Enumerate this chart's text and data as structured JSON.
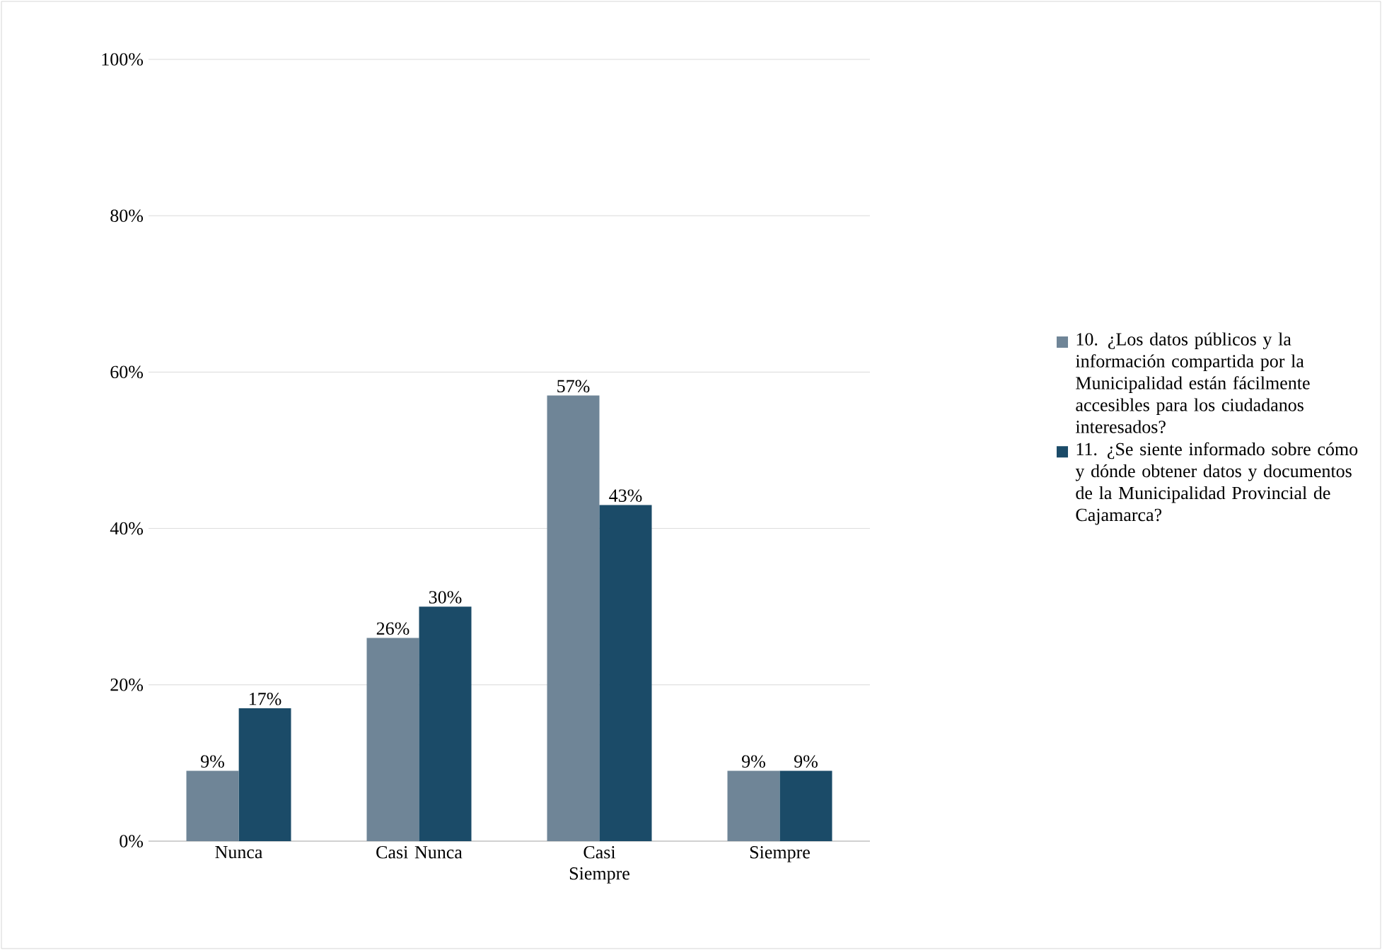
{
  "chart_data": {
    "type": "bar",
    "categories": [
      "Nunca",
      "Casi Nunca",
      "Casi Siempre",
      "Siempre"
    ],
    "series": [
      {
        "name": "10. ¿Los datos públicos y la información compartida por la Municipalidad están fácilmente accesibles para los ciudadanos interesados?",
        "color": "#6f8597",
        "values": [
          9,
          26,
          57,
          9
        ],
        "value_labels": [
          "9%",
          "26%",
          "57%",
          "9%"
        ]
      },
      {
        "name": "11. ¿Se siente informado sobre cómo y dónde obtener datos y documentos de la Municipalidad Provincial de Cajamarca?",
        "color": "#1b4b68",
        "values": [
          17,
          30,
          43,
          9
        ],
        "value_labels": [
          "17%",
          "30%",
          "43%",
          "9%"
        ]
      }
    ],
    "ylim": [
      0,
      100
    ],
    "yticks": [
      {
        "value": 0,
        "label": "0%"
      },
      {
        "value": 20,
        "label": "20%"
      },
      {
        "value": 40,
        "label": "40%"
      },
      {
        "value": 60,
        "label": "60%"
      },
      {
        "value": 80,
        "label": "80%"
      },
      {
        "value": 100,
        "label": "100%"
      }
    ],
    "grid": "y",
    "legend": "right"
  }
}
